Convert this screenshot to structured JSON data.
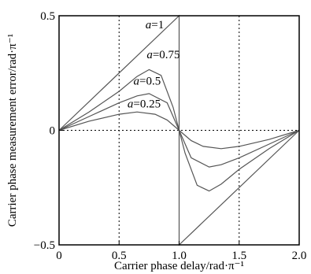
{
  "chart_data": {
    "type": "line",
    "title": "",
    "xlabel": "Carrier phase delay/rad·π⁻¹",
    "ylabel": "Carrier phase measurement error/rad·π⁻¹",
    "xlim": [
      0,
      2
    ],
    "ylim": [
      -0.5,
      0.5
    ],
    "grid": "dotted at x=0.5,1.5 and y=0",
    "x_ticks": [
      {
        "value": 0,
        "label": "0"
      },
      {
        "value": 0.5,
        "label": "0.5"
      },
      {
        "value": 1,
        "label": "1.0"
      },
      {
        "value": 1.5,
        "label": "1.5"
      },
      {
        "value": 2,
        "label": "2.0"
      }
    ],
    "y_ticks": [
      {
        "value": -0.5,
        "label": "−0.5"
      },
      {
        "value": 0,
        "label": "0"
      },
      {
        "value": 0.5,
        "label": "0.5"
      }
    ],
    "series": [
      {
        "name": "a=1",
        "var": "a",
        "val": "=1",
        "x": [
          0,
          1,
          1,
          2
        ],
        "y": [
          0,
          0.5,
          -0.5,
          0
        ]
      },
      {
        "name": "a=0.75",
        "var": "a",
        "val": "=0.75",
        "x": [
          0,
          0.25,
          0.5,
          0.65,
          0.75,
          0.85,
          0.95,
          1.0,
          1.05,
          1.15,
          1.25,
          1.35,
          1.5,
          1.75,
          2.0
        ],
        "y": [
          0,
          0.08,
          0.17,
          0.235,
          0.265,
          0.24,
          0.1,
          0,
          -0.1,
          -0.24,
          -0.265,
          -0.235,
          -0.17,
          -0.08,
          0
        ]
      },
      {
        "name": "a=0.5",
        "var": "a",
        "val": "=0.5",
        "x": [
          0,
          0.25,
          0.5,
          0.65,
          0.75,
          0.9,
          1.0,
          1.1,
          1.25,
          1.35,
          1.5,
          1.75,
          2.0
        ],
        "y": [
          0,
          0.06,
          0.12,
          0.15,
          0.16,
          0.12,
          0,
          -0.12,
          -0.16,
          -0.15,
          -0.12,
          -0.06,
          0
        ]
      },
      {
        "name": "a=0.25",
        "var": "a",
        "val": "=0.25",
        "x": [
          0,
          0.25,
          0.5,
          0.65,
          0.8,
          0.9,
          1.0,
          1.1,
          1.2,
          1.35,
          1.5,
          1.75,
          2.0
        ],
        "y": [
          0,
          0.04,
          0.07,
          0.08,
          0.07,
          0.045,
          0,
          -0.045,
          -0.07,
          -0.08,
          -0.07,
          -0.04,
          0
        ]
      }
    ],
    "annotations": [
      {
        "series": "a=1",
        "x": 0.72,
        "y": 0.445
      },
      {
        "series": "a=0.75",
        "x": 0.73,
        "y": 0.315
      },
      {
        "series": "a=0.5",
        "x": 0.62,
        "y": 0.2
      },
      {
        "series": "a=0.25",
        "x": 0.57,
        "y": 0.1
      }
    ],
    "colors": {
      "axis": "#000000",
      "grid": "#000000",
      "curves": "#555555"
    }
  }
}
